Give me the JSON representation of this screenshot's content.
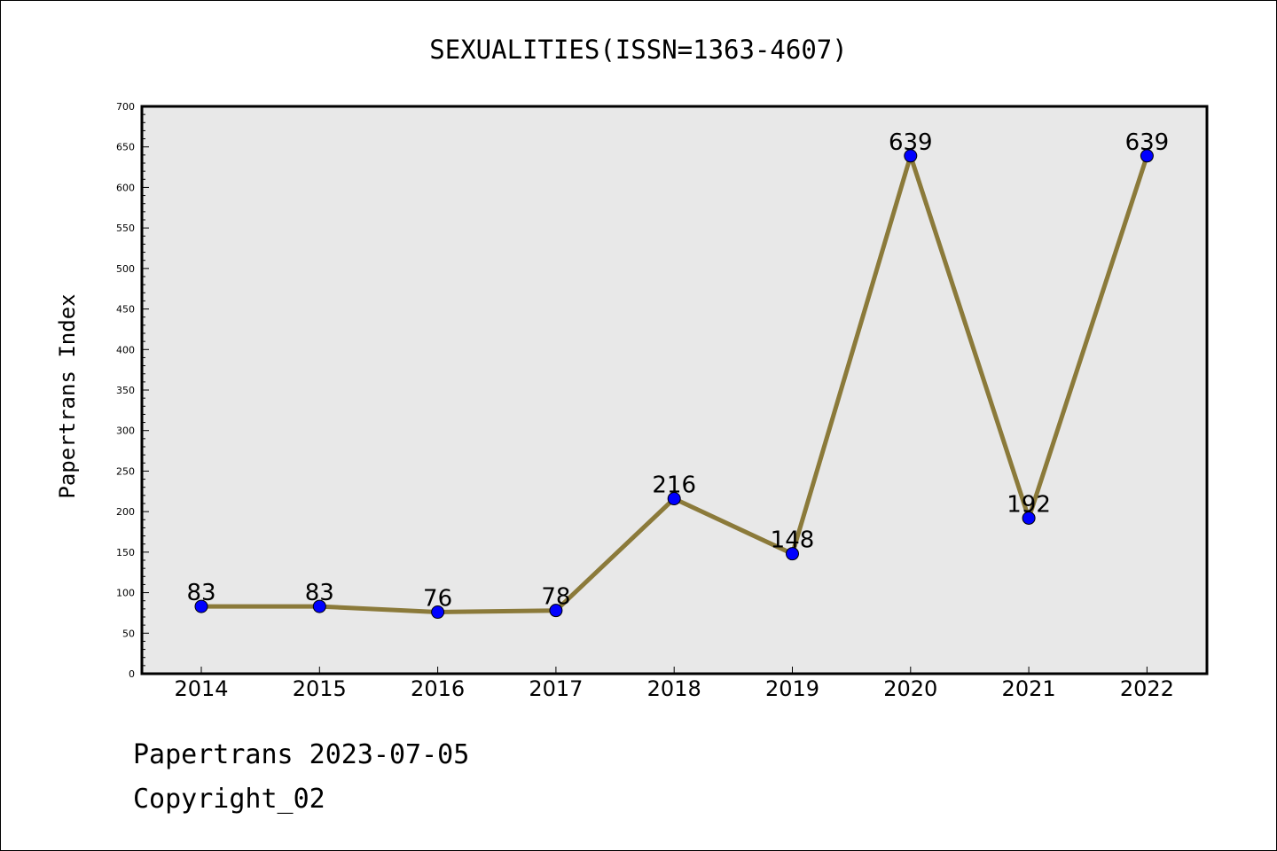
{
  "chart_data": {
    "type": "line",
    "title": "SEXUALITIES(ISSN=1363-4607)",
    "xlabel": "",
    "ylabel": "Papertrans Index",
    "categories": [
      "2014",
      "2015",
      "2016",
      "2017",
      "2018",
      "2019",
      "2020",
      "2021",
      "2022"
    ],
    "series": [
      {
        "values": [
          83,
          83,
          76,
          78,
          216,
          148,
          639,
          192,
          639
        ]
      }
    ],
    "data_labels": [
      "83",
      "83",
      "76",
      "78",
      "216",
      "148",
      "639",
      "192",
      "639"
    ],
    "ylim": [
      0,
      700
    ],
    "yticks": [
      0,
      50,
      100,
      150,
      200,
      250,
      300,
      350,
      400,
      450,
      500,
      550,
      600,
      650,
      700
    ],
    "grid": false,
    "legend": "none",
    "colors": {
      "line": "#8b7a3a",
      "marker": "#0000ff",
      "plot_background": "#e8e8e8"
    }
  },
  "footer": {
    "date_line": "Papertrans 2023-07-05",
    "copyright_line": "Copyright_02"
  }
}
